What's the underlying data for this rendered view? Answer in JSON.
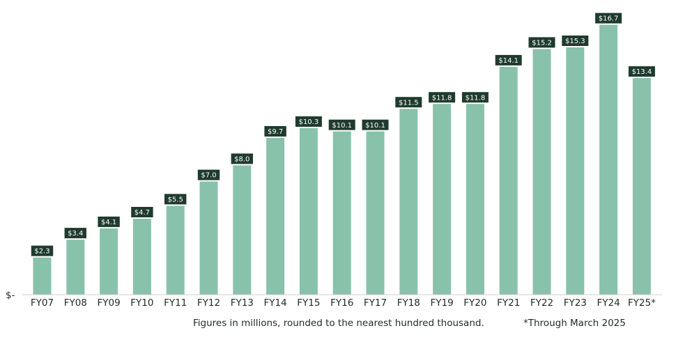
{
  "chart_data": {
    "type": "bar",
    "categories": [
      "FY07",
      "FY08",
      "FY09",
      "FY10",
      "FY11",
      "FY12",
      "FY13",
      "FY14",
      "FY15",
      "FY16",
      "FY17",
      "FY18",
      "FY19",
      "FY20",
      "FY21",
      "FY22",
      "FY23",
      "FY24",
      "FY25*"
    ],
    "values": [
      2.3,
      3.4,
      4.1,
      4.7,
      5.5,
      7.0,
      8.0,
      9.7,
      10.3,
      10.1,
      10.1,
      11.5,
      11.8,
      11.8,
      14.1,
      15.2,
      15.3,
      16.7,
      13.4
    ],
    "data_labels": [
      "$2.3",
      "$3.4",
      "$4.1",
      "$4.7",
      "$5.5",
      "$7.0",
      "$8.0",
      "$9.7",
      "$10.3",
      "$10.1",
      "$10.1",
      "$11.5",
      "$11.8",
      "$11.8",
      "$14.1",
      "$15.2",
      "$15.3",
      "$16.7",
      "$13.4"
    ],
    "y_tick_label": "$-",
    "ylim": [
      0,
      17
    ],
    "grid": false,
    "legend": "none",
    "colors": {
      "bar": "#88c2aa",
      "label_bg": "#1f3b2e",
      "label_text": "#ffffff",
      "axis": "#cfcfcf",
      "text": "#1e2a22"
    }
  },
  "footnotes": {
    "note": "Figures in millions, rounded to the nearest hundred thousand.",
    "asterisk": "*Through March 2025"
  }
}
